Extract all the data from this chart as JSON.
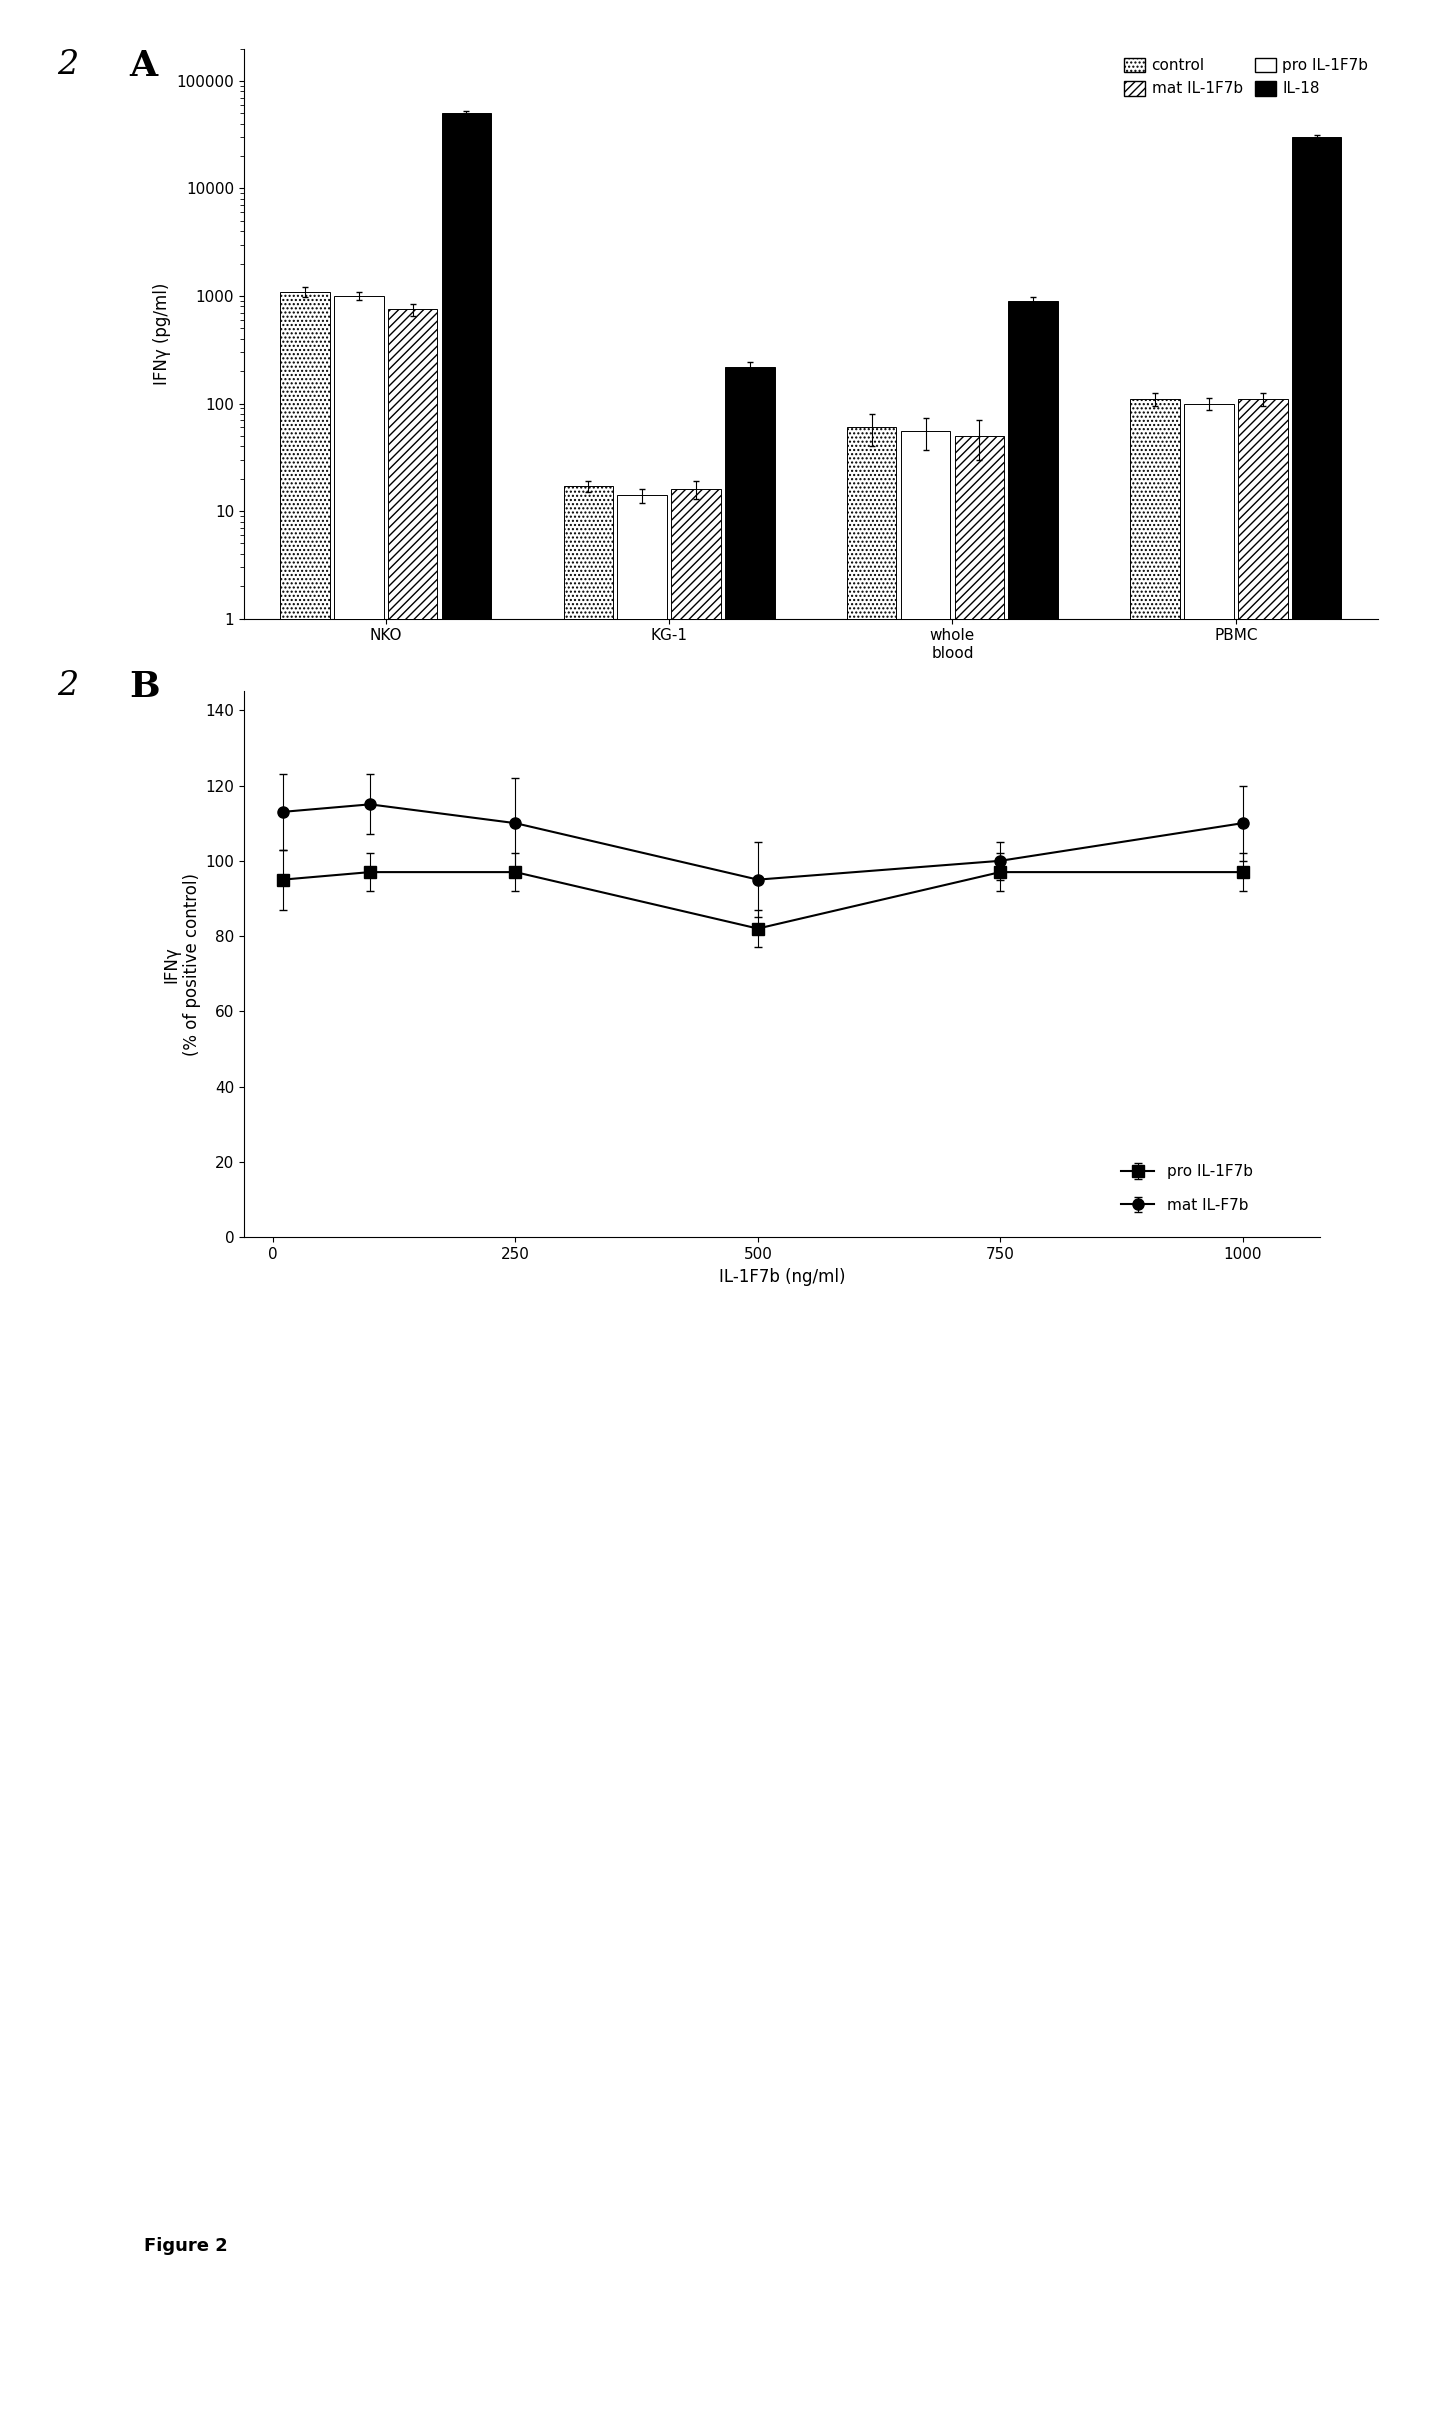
{
  "panel_A": {
    "groups": [
      "NKO",
      "KG-1",
      "whole\nblood",
      "PBMC"
    ],
    "series_order": [
      "control",
      "pro IL-1F7b",
      "mat IL-1F7b",
      "IL-18"
    ],
    "series": {
      "control": {
        "values": [
          1100,
          17,
          60,
          110
        ],
        "errors": [
          120,
          2,
          20,
          15
        ],
        "hatch": "....",
        "facecolor": "white",
        "edgecolor": "black"
      },
      "pro IL-1F7b": {
        "values": [
          1000,
          14,
          55,
          100
        ],
        "errors": [
          80,
          2,
          18,
          12
        ],
        "hatch": "",
        "facecolor": "white",
        "edgecolor": "black"
      },
      "mat IL-1F7b": {
        "values": [
          750,
          16,
          50,
          110
        ],
        "errors": [
          100,
          3,
          20,
          15
        ],
        "hatch": "////",
        "facecolor": "white",
        "edgecolor": "black"
      },
      "IL-18": {
        "values": [
          50000,
          220,
          900,
          30000
        ],
        "errors": [
          2000,
          25,
          80,
          1500
        ],
        "hatch": "",
        "facecolor": "black",
        "edgecolor": "black"
      }
    },
    "ylabel": "IFNγ (pg/ml)",
    "ylim": [
      1,
      200000
    ],
    "yticks": [
      1,
      10,
      100,
      1000,
      10000,
      100000
    ],
    "ytick_labels": [
      "1",
      "10",
      "100",
      "1000",
      "10000",
      "100000"
    ]
  },
  "panel_B": {
    "x_values": [
      10,
      100,
      250,
      500,
      750,
      1000
    ],
    "series": {
      "pro IL-1F7b": {
        "values": [
          95,
          97,
          97,
          82,
          97,
          97
        ],
        "errors": [
          8,
          5,
          5,
          5,
          5,
          5
        ],
        "marker": "s",
        "color": "black"
      },
      "mat IL-F7b": {
        "values": [
          113,
          115,
          110,
          95,
          100,
          110
        ],
        "errors": [
          10,
          8,
          12,
          10,
          5,
          10
        ],
        "marker": "o",
        "color": "black"
      }
    },
    "xlabel": "IL-1F7b (ng/ml)",
    "ylabel": "IFNγ\n(% of positive control)",
    "ylim": [
      0,
      145
    ],
    "yticks": [
      0,
      20,
      40,
      60,
      80,
      100,
      120,
      140
    ],
    "xticks": [
      0,
      250,
      500,
      750,
      1000
    ],
    "xtick_labels": [
      "0",
      "250",
      "500",
      "750",
      "1000"
    ]
  },
  "background_color": "#ffffff"
}
